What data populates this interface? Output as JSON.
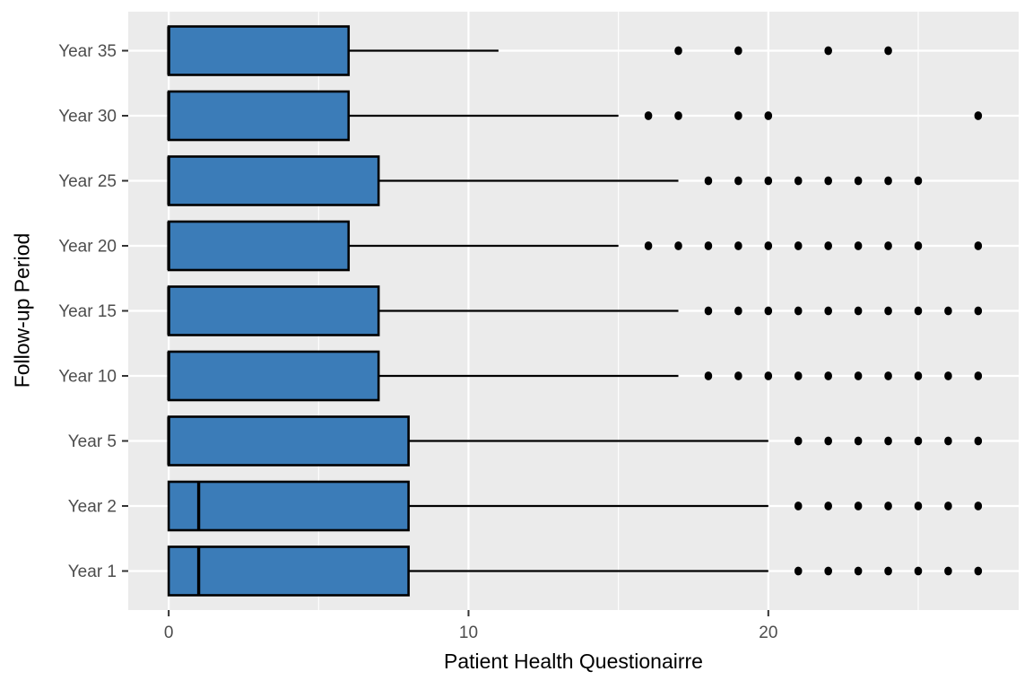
{
  "chart_data": {
    "type": "boxplot",
    "orientation": "horizontal",
    "title": "",
    "xlabel": "Patient Health Questionairre",
    "ylabel": "Follow-up Period",
    "x_ticks": [
      0,
      10,
      20
    ],
    "x_minor_gridlines": [
      5,
      15,
      25
    ],
    "xlim": [
      -1.35,
      28.35
    ],
    "legend": "none",
    "grid": "major-and-minor-vertical, major-horizontal",
    "rows_top_to_bottom": [
      {
        "category": "Year 35",
        "min": 0,
        "q1": 0,
        "median": 0,
        "q3": 6,
        "whisker_high": 11,
        "outliers": [
          17,
          19,
          22,
          24
        ]
      },
      {
        "category": "Year 30",
        "min": 0,
        "q1": 0,
        "median": 0,
        "q3": 6,
        "whisker_high": 15,
        "outliers": [
          16,
          17,
          19,
          20,
          27
        ]
      },
      {
        "category": "Year 25",
        "min": 0,
        "q1": 0,
        "median": 0,
        "q3": 7,
        "whisker_high": 17,
        "outliers": [
          18,
          19,
          20,
          21,
          22,
          23,
          24,
          25
        ]
      },
      {
        "category": "Year 20",
        "min": 0,
        "q1": 0,
        "median": 0,
        "q3": 6,
        "whisker_high": 15,
        "outliers": [
          16,
          17,
          18,
          19,
          20,
          21,
          22,
          23,
          24,
          25,
          27
        ]
      },
      {
        "category": "Year 15",
        "min": 0,
        "q1": 0,
        "median": 0,
        "q3": 7,
        "whisker_high": 17,
        "outliers": [
          18,
          19,
          20,
          21,
          22,
          23,
          24,
          25,
          26,
          27
        ]
      },
      {
        "category": "Year 10",
        "min": 0,
        "q1": 0,
        "median": 0,
        "q3": 7,
        "whisker_high": 17,
        "outliers": [
          18,
          19,
          20,
          21,
          22,
          23,
          24,
          25,
          26,
          27
        ]
      },
      {
        "category": "Year 5",
        "min": 0,
        "q1": 0,
        "median": 0,
        "q3": 8,
        "whisker_high": 20,
        "outliers": [
          21,
          22,
          23,
          24,
          25,
          26,
          27
        ]
      },
      {
        "category": "Year 2",
        "min": 0,
        "q1": 0,
        "median": 1,
        "q3": 8,
        "whisker_high": 20,
        "outliers": [
          21,
          22,
          23,
          24,
          25,
          26,
          27
        ]
      },
      {
        "category": "Year 1",
        "min": 0,
        "q1": 0,
        "median": 1,
        "q3": 8,
        "whisker_high": 20,
        "outliers": [
          21,
          22,
          23,
          24,
          25,
          26,
          27
        ]
      }
    ],
    "colors": {
      "box_fill": "#3B7CB8",
      "box_border": "#000000",
      "median_line": "#000000",
      "whisker": "#000000",
      "outlier": "#000000",
      "panel_background": "#EBEBEB",
      "gridline": "#FFFFFF",
      "tick_mark": "#333333",
      "tick_label": "#4D4D4D",
      "axis_title": "#000000"
    }
  }
}
